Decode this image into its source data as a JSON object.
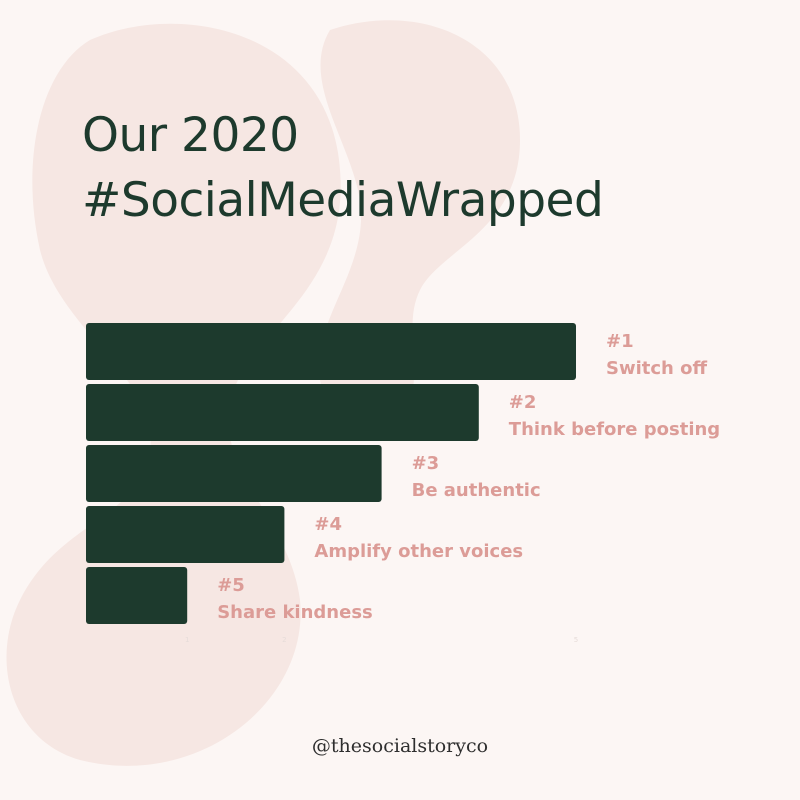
{
  "title": {
    "line1": "Our 2020",
    "line2": "#SocialMediaWrapped"
  },
  "colors": {
    "background": "#fcf6f4",
    "decor": "#f6e7e3",
    "bar": "#1d3a2d",
    "label": "#dc9c97",
    "title": "#1d3a2d"
  },
  "chart_data": {
    "type": "bar",
    "orientation": "horizontal",
    "categories": [
      "#1",
      "#2",
      "#3",
      "#4",
      "#5"
    ],
    "labels": [
      "Switch off",
      "Think before posting",
      "Be authentic",
      "Amplify other voices",
      "Share kindness"
    ],
    "values": [
      5,
      4,
      3,
      2,
      1
    ],
    "xlim": [
      0,
      5
    ],
    "x_ticks": [
      1,
      2,
      5
    ],
    "grid": false,
    "legend": "none"
  },
  "footer": {
    "handle": "@thesocialstoryco"
  }
}
